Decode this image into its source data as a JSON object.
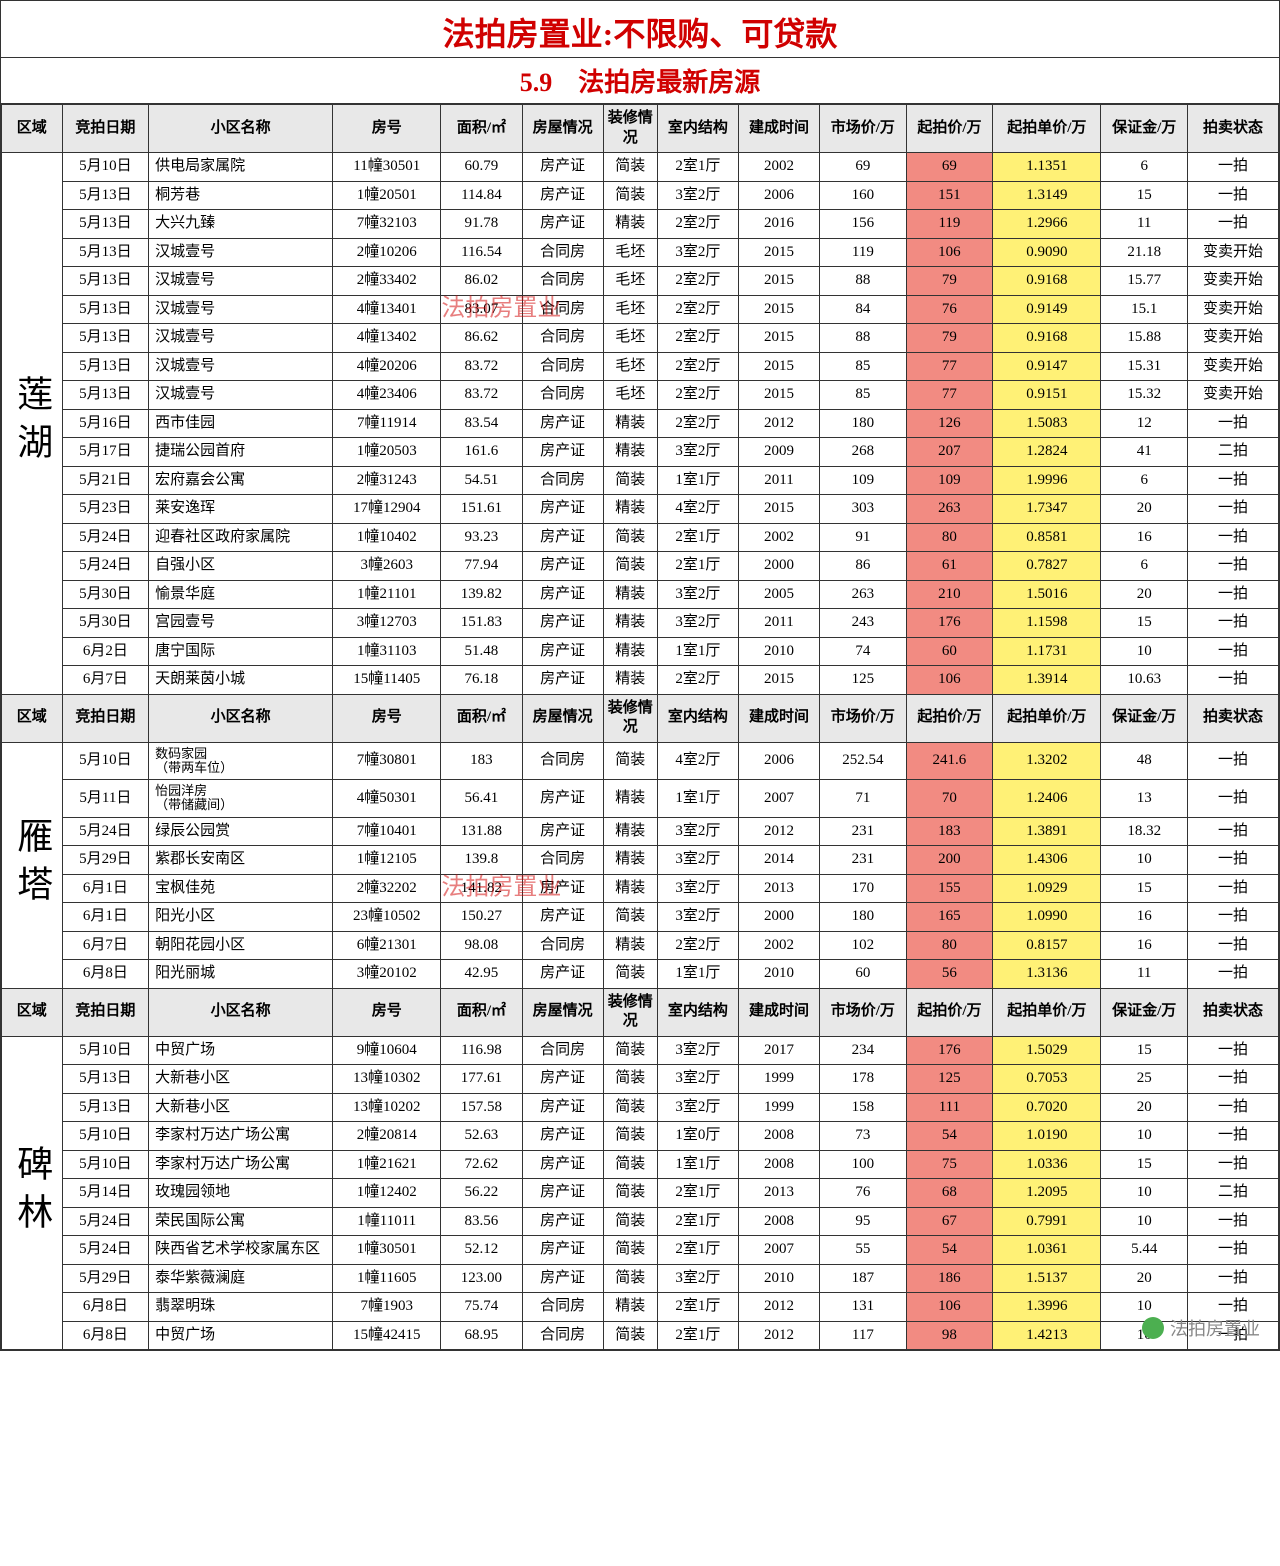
{
  "titles": {
    "line1": "法拍房置业:不限购、可贷款",
    "line2": "5.9　法拍房最新房源"
  },
  "headers": {
    "region": "区域",
    "date": "竞拍日期",
    "name": "小区名称",
    "room": "房号",
    "area": "面积/㎡",
    "condition": "房屋情况",
    "deco": "装修情况",
    "struct": "室内结构",
    "year": "建成时间",
    "market": "市场价/万",
    "start": "起拍价/万",
    "unit": "起拍单价/万",
    "deposit": "保证金/万",
    "status": "拍卖状态"
  },
  "watermark": "法拍房置业",
  "footer": "法拍房置业",
  "colors": {
    "title_red": "#d00000",
    "header_bg": "#e8e8e8",
    "highlight_red": "#f28b82",
    "highlight_yellow": "#fff176",
    "border": "#333333"
  },
  "sections": [
    {
      "region": "莲湖",
      "watermark_row": 5,
      "rows": [
        {
          "date": "5月10日",
          "name": "供电局家属院",
          "room": "11幢30501",
          "area": "60.79",
          "cond": "房产证",
          "deco": "简装",
          "struct": "2室1厅",
          "year": "2002",
          "market": "69",
          "start": "69",
          "unit": "1.1351",
          "deposit": "6",
          "status": "一拍"
        },
        {
          "date": "5月13日",
          "name": "桐芳巷",
          "room": "1幢20501",
          "area": "114.84",
          "cond": "房产证",
          "deco": "简装",
          "struct": "3室2厅",
          "year": "2006",
          "market": "160",
          "start": "151",
          "unit": "1.3149",
          "deposit": "15",
          "status": "一拍"
        },
        {
          "date": "5月13日",
          "name": "大兴九臻",
          "room": "7幢32103",
          "area": "91.78",
          "cond": "房产证",
          "deco": "精装",
          "struct": "2室2厅",
          "year": "2016",
          "market": "156",
          "start": "119",
          "unit": "1.2966",
          "deposit": "11",
          "status": "一拍"
        },
        {
          "date": "5月13日",
          "name": "汉城壹号",
          "room": "2幢10206",
          "area": "116.54",
          "cond": "合同房",
          "deco": "毛坯",
          "struct": "3室2厅",
          "year": "2015",
          "market": "119",
          "start": "106",
          "unit": "0.9090",
          "deposit": "21.18",
          "status": "变卖开始"
        },
        {
          "date": "5月13日",
          "name": "汉城壹号",
          "room": "2幢33402",
          "area": "86.02",
          "cond": "合同房",
          "deco": "毛坯",
          "struct": "2室2厅",
          "year": "2015",
          "market": "88",
          "start": "79",
          "unit": "0.9168",
          "deposit": "15.77",
          "status": "变卖开始"
        },
        {
          "date": "5月13日",
          "name": "汉城壹号",
          "room": "4幢13401",
          "area": "83.07",
          "cond": "合同房",
          "deco": "毛坯",
          "struct": "2室2厅",
          "year": "2015",
          "market": "84",
          "start": "76",
          "unit": "0.9149",
          "deposit": "15.1",
          "status": "变卖开始"
        },
        {
          "date": "5月13日",
          "name": "汉城壹号",
          "room": "4幢13402",
          "area": "86.62",
          "cond": "合同房",
          "deco": "毛坯",
          "struct": "2室2厅",
          "year": "2015",
          "market": "88",
          "start": "79",
          "unit": "0.9168",
          "deposit": "15.88",
          "status": "变卖开始"
        },
        {
          "date": "5月13日",
          "name": "汉城壹号",
          "room": "4幢20206",
          "area": "83.72",
          "cond": "合同房",
          "deco": "毛坯",
          "struct": "2室2厅",
          "year": "2015",
          "market": "85",
          "start": "77",
          "unit": "0.9147",
          "deposit": "15.31",
          "status": "变卖开始"
        },
        {
          "date": "5月13日",
          "name": "汉城壹号",
          "room": "4幢23406",
          "area": "83.72",
          "cond": "合同房",
          "deco": "毛坯",
          "struct": "2室2厅",
          "year": "2015",
          "market": "85",
          "start": "77",
          "unit": "0.9151",
          "deposit": "15.32",
          "status": "变卖开始"
        },
        {
          "date": "5月16日",
          "name": "西市佳园",
          "room": "7幢11914",
          "area": "83.54",
          "cond": "房产证",
          "deco": "精装",
          "struct": "2室2厅",
          "year": "2012",
          "market": "180",
          "start": "126",
          "unit": "1.5083",
          "deposit": "12",
          "status": "一拍"
        },
        {
          "date": "5月17日",
          "name": "捷瑞公园首府",
          "room": "1幢20503",
          "area": "161.6",
          "cond": "房产证",
          "deco": "精装",
          "struct": "3室2厅",
          "year": "2009",
          "market": "268",
          "start": "207",
          "unit": "1.2824",
          "deposit": "41",
          "status": "二拍"
        },
        {
          "date": "5月21日",
          "name": "宏府嘉会公寓",
          "room": "2幢31243",
          "area": "54.51",
          "cond": "合同房",
          "deco": "简装",
          "struct": "1室1厅",
          "year": "2011",
          "market": "109",
          "start": "109",
          "unit": "1.9996",
          "deposit": "6",
          "status": "一拍"
        },
        {
          "date": "5月23日",
          "name": "莱安逸珲",
          "room": "17幢12904",
          "area": "151.61",
          "cond": "房产证",
          "deco": "精装",
          "struct": "4室2厅",
          "year": "2015",
          "market": "303",
          "start": "263",
          "unit": "1.7347",
          "deposit": "20",
          "status": "一拍"
        },
        {
          "date": "5月24日",
          "name": "迎春社区政府家属院",
          "room": "1幢10402",
          "area": "93.23",
          "cond": "房产证",
          "deco": "简装",
          "struct": "2室1厅",
          "year": "2002",
          "market": "91",
          "start": "80",
          "unit": "0.8581",
          "deposit": "16",
          "status": "一拍"
        },
        {
          "date": "5月24日",
          "name": "自强小区",
          "room": "3幢2603",
          "area": "77.94",
          "cond": "房产证",
          "deco": "简装",
          "struct": "2室1厅",
          "year": "2000",
          "market": "86",
          "start": "61",
          "unit": "0.7827",
          "deposit": "6",
          "status": "一拍"
        },
        {
          "date": "5月30日",
          "name": "愉景华庭",
          "room": "1幢21101",
          "area": "139.82",
          "cond": "房产证",
          "deco": "精装",
          "struct": "3室2厅",
          "year": "2005",
          "market": "263",
          "start": "210",
          "unit": "1.5016",
          "deposit": "20",
          "status": "一拍"
        },
        {
          "date": "5月30日",
          "name": "宫园壹号",
          "room": "3幢12703",
          "area": "151.83",
          "cond": "房产证",
          "deco": "精装",
          "struct": "3室2厅",
          "year": "2011",
          "market": "243",
          "start": "176",
          "unit": "1.1598",
          "deposit": "15",
          "status": "一拍"
        },
        {
          "date": "6月2日",
          "name": "唐宁国际",
          "room": "1幢31103",
          "area": "51.48",
          "cond": "房产证",
          "deco": "精装",
          "struct": "1室1厅",
          "year": "2010",
          "market": "74",
          "start": "60",
          "unit": "1.1731",
          "deposit": "10",
          "status": "一拍"
        },
        {
          "date": "6月7日",
          "name": "天朗莱茵小城",
          "room": "15幢11405",
          "area": "76.18",
          "cond": "房产证",
          "deco": "精装",
          "struct": "2室2厅",
          "year": "2015",
          "market": "125",
          "start": "106",
          "unit": "1.3914",
          "deposit": "10.63",
          "status": "一拍"
        }
      ]
    },
    {
      "region": "雁塔",
      "watermark_row": 4,
      "rows": [
        {
          "date": "5月10日",
          "name": "数码家园\n（带两车位）",
          "room": "7幢30801",
          "area": "183",
          "cond": "合同房",
          "deco": "简装",
          "struct": "4室2厅",
          "year": "2006",
          "market": "252.54",
          "start": "241.6",
          "unit": "1.3202",
          "deposit": "48",
          "status": "一拍"
        },
        {
          "date": "5月11日",
          "name": "怡园洋房\n（带储藏间）",
          "room": "4幢50301",
          "area": "56.41",
          "cond": "房产证",
          "deco": "精装",
          "struct": "1室1厅",
          "year": "2007",
          "market": "71",
          "start": "70",
          "unit": "1.2406",
          "deposit": "13",
          "status": "一拍"
        },
        {
          "date": "5月24日",
          "name": "绿辰公园赏",
          "room": "7幢10401",
          "area": "131.88",
          "cond": "房产证",
          "deco": "精装",
          "struct": "3室2厅",
          "year": "2012",
          "market": "231",
          "start": "183",
          "unit": "1.3891",
          "deposit": "18.32",
          "status": "一拍"
        },
        {
          "date": "5月29日",
          "name": "紫郡长安南区",
          "room": "1幢12105",
          "area": "139.8",
          "cond": "合同房",
          "deco": "精装",
          "struct": "3室2厅",
          "year": "2014",
          "market": "231",
          "start": "200",
          "unit": "1.4306",
          "deposit": "10",
          "status": "一拍"
        },
        {
          "date": "6月1日",
          "name": "宝枫佳苑",
          "room": "2幢32202",
          "area": "141.82",
          "cond": "房产证",
          "deco": "精装",
          "struct": "3室2厅",
          "year": "2013",
          "market": "170",
          "start": "155",
          "unit": "1.0929",
          "deposit": "15",
          "status": "一拍"
        },
        {
          "date": "6月1日",
          "name": "阳光小区",
          "room": "23幢10502",
          "area": "150.27",
          "cond": "房产证",
          "deco": "简装",
          "struct": "3室2厅",
          "year": "2000",
          "market": "180",
          "start": "165",
          "unit": "1.0990",
          "deposit": "16",
          "status": "一拍"
        },
        {
          "date": "6月7日",
          "name": "朝阳花园小区",
          "room": "6幢21301",
          "area": "98.08",
          "cond": "合同房",
          "deco": "精装",
          "struct": "2室2厅",
          "year": "2002",
          "market": "102",
          "start": "80",
          "unit": "0.8157",
          "deposit": "16",
          "status": "一拍"
        },
        {
          "date": "6月8日",
          "name": "阳光丽城",
          "room": "3幢20102",
          "area": "42.95",
          "cond": "房产证",
          "deco": "简装",
          "struct": "1室1厅",
          "year": "2010",
          "market": "60",
          "start": "56",
          "unit": "1.3136",
          "deposit": "11",
          "status": "一拍"
        }
      ]
    },
    {
      "region": "碑林",
      "watermark_row": -1,
      "rows": [
        {
          "date": "5月10日",
          "name": "中贸广场",
          "room": "9幢10604",
          "area": "116.98",
          "cond": "合同房",
          "deco": "简装",
          "struct": "3室2厅",
          "year": "2017",
          "market": "234",
          "start": "176",
          "unit": "1.5029",
          "deposit": "15",
          "status": "一拍"
        },
        {
          "date": "5月13日",
          "name": "大新巷小区",
          "room": "13幢10302",
          "area": "177.61",
          "cond": "房产证",
          "deco": "简装",
          "struct": "3室2厅",
          "year": "1999",
          "market": "178",
          "start": "125",
          "unit": "0.7053",
          "deposit": "25",
          "status": "一拍"
        },
        {
          "date": "5月13日",
          "name": "大新巷小区",
          "room": "13幢10202",
          "area": "157.58",
          "cond": "房产证",
          "deco": "简装",
          "struct": "3室2厅",
          "year": "1999",
          "market": "158",
          "start": "111",
          "unit": "0.7020",
          "deposit": "20",
          "status": "一拍"
        },
        {
          "date": "5月10日",
          "name": "李家村万达广场公寓",
          "room": "2幢20814",
          "area": "52.63",
          "cond": "房产证",
          "deco": "简装",
          "struct": "1室0厅",
          "year": "2008",
          "market": "73",
          "start": "54",
          "unit": "1.0190",
          "deposit": "10",
          "status": "一拍"
        },
        {
          "date": "5月10日",
          "name": "李家村万达广场公寓",
          "room": "1幢21621",
          "area": "72.62",
          "cond": "房产证",
          "deco": "简装",
          "struct": "1室1厅",
          "year": "2008",
          "market": "100",
          "start": "75",
          "unit": "1.0336",
          "deposit": "15",
          "status": "一拍"
        },
        {
          "date": "5月14日",
          "name": "玫瑰园领地",
          "room": "1幢12402",
          "area": "56.22",
          "cond": "房产证",
          "deco": "简装",
          "struct": "2室1厅",
          "year": "2013",
          "market": "76",
          "start": "68",
          "unit": "1.2095",
          "deposit": "10",
          "status": "二拍"
        },
        {
          "date": "5月24日",
          "name": "荣民国际公寓",
          "room": "1幢11011",
          "area": "83.56",
          "cond": "房产证",
          "deco": "简装",
          "struct": "2室1厅",
          "year": "2008",
          "market": "95",
          "start": "67",
          "unit": "0.7991",
          "deposit": "10",
          "status": "一拍"
        },
        {
          "date": "5月24日",
          "name": "陕西省艺术学校家属东区",
          "room": "1幢30501",
          "area": "52.12",
          "cond": "房产证",
          "deco": "简装",
          "struct": "2室1厅",
          "year": "2007",
          "market": "55",
          "start": "54",
          "unit": "1.0361",
          "deposit": "5.44",
          "status": "一拍"
        },
        {
          "date": "5月29日",
          "name": "泰华紫薇澜庭",
          "room": "1幢11605",
          "area": "123.00",
          "cond": "房产证",
          "deco": "简装",
          "struct": "3室2厅",
          "year": "2010",
          "market": "187",
          "start": "186",
          "unit": "1.5137",
          "deposit": "20",
          "status": "一拍"
        },
        {
          "date": "6月8日",
          "name": "翡翠明珠",
          "room": "7幢1903",
          "area": "75.74",
          "cond": "合同房",
          "deco": "精装",
          "struct": "2室1厅",
          "year": "2012",
          "market": "131",
          "start": "106",
          "unit": "1.3996",
          "deposit": "10",
          "status": "一拍"
        },
        {
          "date": "6月8日",
          "name": "中贸广场",
          "room": "15幢42415",
          "area": "68.95",
          "cond": "合同房",
          "deco": "简装",
          "struct": "2室1厅",
          "year": "2012",
          "market": "117",
          "start": "98",
          "unit": "1.4213",
          "deposit": "10",
          "status": "一拍"
        }
      ]
    }
  ]
}
